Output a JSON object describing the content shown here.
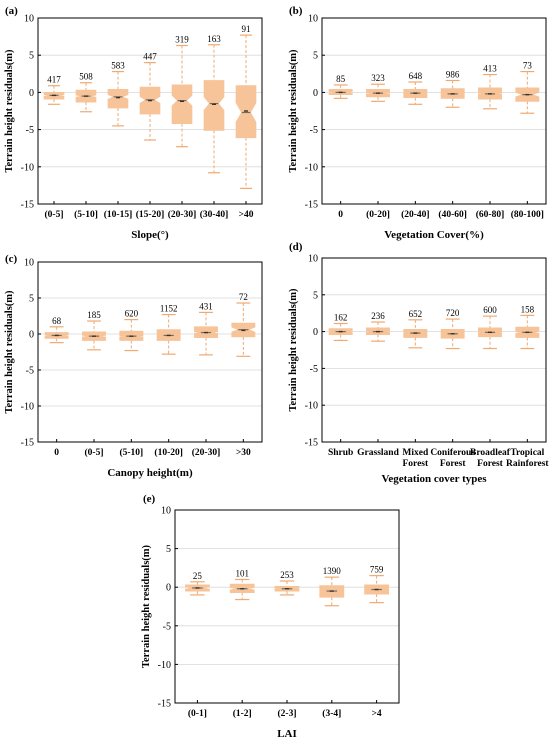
{
  "chart_data": [
    {
      "id": "a",
      "type": "box",
      "panel_label": "(a)",
      "title": "",
      "xlabel": "Slope(°)",
      "ylabel": "Terrain height residuals(m)",
      "ylim": [
        -15,
        10
      ],
      "yticks": [
        -15,
        -10,
        -5,
        0,
        5,
        10
      ],
      "grid": true,
      "categories": [
        "(0-5]",
        "(5-10]",
        "(10-15]",
        "(15-20]",
        "(20-30]",
        "(30-40]",
        ">40"
      ],
      "counts": [
        "417",
        "508",
        "583",
        "447",
        "319",
        "163",
        "91"
      ],
      "boxes": [
        {
          "q1": -0.9,
          "median": -0.4,
          "q3": 0.0,
          "whisker_low": -1.6,
          "whisker_high": 0.9,
          "notch": 0.12,
          "mean": -0.4
        },
        {
          "q1": -1.3,
          "median": -0.5,
          "q3": 0.3,
          "whisker_low": -2.6,
          "whisker_high": 1.3,
          "notch": 0.15,
          "mean": -0.5
        },
        {
          "q1": -2.1,
          "median": -0.6,
          "q3": 0.4,
          "whisker_low": -4.5,
          "whisker_high": 2.8,
          "notch": 0.3,
          "mean": -0.7
        },
        {
          "q1": -2.9,
          "median": -1.0,
          "q3": 0.7,
          "whisker_low": -6.4,
          "whisker_high": 4.0,
          "notch": 0.45,
          "mean": -1.1
        },
        {
          "q1": -4.2,
          "median": -1.1,
          "q3": 1.0,
          "whisker_low": -7.3,
          "whisker_high": 6.3,
          "notch": 0.7,
          "mean": -1.2
        },
        {
          "q1": -5.1,
          "median": -1.5,
          "q3": 1.6,
          "whisker_low": -10.8,
          "whisker_high": 6.4,
          "notch": 0.9,
          "mean": -1.6
        },
        {
          "q1": -6.1,
          "median": -2.7,
          "q3": 0.9,
          "whisker_low": -12.9,
          "whisker_high": 7.7,
          "notch": 1.3,
          "mean": -2.5
        }
      ]
    },
    {
      "id": "b",
      "type": "box",
      "panel_label": "(b)",
      "title": "",
      "xlabel": "Vegetation Cover(%)",
      "ylabel": "Terrain height residuals(m)",
      "ylim": [
        -15,
        10
      ],
      "yticks": [
        -15,
        -10,
        -5,
        0,
        5,
        10
      ],
      "grid": true,
      "categories": [
        "0",
        "(0-20]",
        "(20-40]",
        "(40-60]",
        "(60-80]",
        "(80-100]"
      ],
      "counts": [
        "85",
        "323",
        "648",
        "986",
        "413",
        "73"
      ],
      "boxes": [
        {
          "q1": -0.3,
          "median": 0.0,
          "q3": 0.4,
          "whisker_low": -0.8,
          "whisker_high": 1.0,
          "notch": 0.12,
          "mean": 0.0
        },
        {
          "q1": -0.6,
          "median": -0.1,
          "q3": 0.4,
          "whisker_low": -1.2,
          "whisker_high": 1.1,
          "notch": 0.08,
          "mean": -0.1
        },
        {
          "q1": -0.7,
          "median": -0.1,
          "q3": 0.4,
          "whisker_low": -1.6,
          "whisker_high": 1.4,
          "notch": 0.06,
          "mean": -0.1
        },
        {
          "q1": -0.8,
          "median": -0.2,
          "q3": 0.5,
          "whisker_low": -2.0,
          "whisker_high": 1.6,
          "notch": 0.05,
          "mean": -0.2
        },
        {
          "q1": -0.9,
          "median": -0.2,
          "q3": 0.6,
          "whisker_low": -2.2,
          "whisker_high": 2.4,
          "notch": 0.08,
          "mean": -0.2
        },
        {
          "q1": -1.2,
          "median": -0.3,
          "q3": 0.6,
          "whisker_low": -2.8,
          "whisker_high": 2.8,
          "notch": 0.3,
          "mean": -0.3
        }
      ]
    },
    {
      "id": "c",
      "type": "box",
      "panel_label": "(c)",
      "title": "",
      "xlabel": "Canopy height(m)",
      "ylabel": "Terrain height residuals(m)",
      "ylim": [
        -15,
        10
      ],
      "yticks": [
        -15,
        -10,
        -5,
        0,
        5,
        10
      ],
      "grid": true,
      "categories": [
        "0",
        "(0-5]",
        "(5-10]",
        "(10-20]",
        "(20-30]",
        ">30"
      ],
      "counts": [
        "68",
        "185",
        "620",
        "1152",
        "431",
        "72"
      ],
      "boxes": [
        {
          "q1": -0.6,
          "median": -0.2,
          "q3": 0.2,
          "whisker_low": -1.2,
          "whisker_high": 1.0,
          "notch": 0.1,
          "mean": -0.2
        },
        {
          "q1": -0.9,
          "median": -0.3,
          "q3": 0.3,
          "whisker_low": -2.2,
          "whisker_high": 1.8,
          "notch": 0.12,
          "mean": -0.3
        },
        {
          "q1": -0.9,
          "median": -0.3,
          "q3": 0.4,
          "whisker_low": -2.3,
          "whisker_high": 2.0,
          "notch": 0.08,
          "mean": -0.3
        },
        {
          "q1": -0.9,
          "median": -0.2,
          "q3": 0.6,
          "whisker_low": -2.8,
          "whisker_high": 2.7,
          "notch": 0.06,
          "mean": -0.2
        },
        {
          "q1": -0.5,
          "median": 0.2,
          "q3": 1.0,
          "whisker_low": -2.9,
          "whisker_high": 3.0,
          "notch": 0.12,
          "mean": 0.2
        },
        {
          "q1": -0.4,
          "median": 0.6,
          "q3": 1.5,
          "whisker_low": -3.1,
          "whisker_high": 4.3,
          "notch": 0.35,
          "mean": 0.5
        }
      ]
    },
    {
      "id": "d",
      "type": "box",
      "panel_label": "(d)",
      "title": "",
      "xlabel": "Vegetation cover types",
      "ylabel": "Terrain height residuals(m)",
      "ylim": [
        -15,
        10
      ],
      "yticks": [
        -15,
        -10,
        -5,
        0,
        5,
        10
      ],
      "grid": true,
      "categories": [
        [
          "Shrub"
        ],
        [
          "Grassland"
        ],
        [
          "Mixed",
          "Forest"
        ],
        [
          "Coniferous",
          "Forest"
        ],
        [
          "Broadleaf",
          "Forest"
        ],
        [
          "Tropical",
          "Rainforest"
        ]
      ],
      "counts": [
        "162",
        "236",
        "652",
        "720",
        "600",
        "158"
      ],
      "boxes": [
        {
          "q1": -0.4,
          "median": 0.0,
          "q3": 0.4,
          "whisker_low": -1.2,
          "whisker_high": 1.1,
          "notch": 0.1,
          "mean": 0.0
        },
        {
          "q1": -0.4,
          "median": 0.0,
          "q3": 0.5,
          "whisker_low": -1.3,
          "whisker_high": 1.3,
          "notch": 0.1,
          "mean": 0.0
        },
        {
          "q1": -0.8,
          "median": -0.2,
          "q3": 0.3,
          "whisker_low": -2.2,
          "whisker_high": 1.6,
          "notch": 0.06,
          "mean": -0.2
        },
        {
          "q1": -0.9,
          "median": -0.3,
          "q3": 0.3,
          "whisker_low": -2.3,
          "whisker_high": 1.7,
          "notch": 0.06,
          "mean": -0.3
        },
        {
          "q1": -0.7,
          "median": -0.1,
          "q3": 0.5,
          "whisker_low": -2.3,
          "whisker_high": 2.1,
          "notch": 0.07,
          "mean": -0.1
        },
        {
          "q1": -0.8,
          "median": -0.1,
          "q3": 0.6,
          "whisker_low": -2.3,
          "whisker_high": 2.2,
          "notch": 0.12,
          "mean": -0.1
        }
      ]
    },
    {
      "id": "e",
      "type": "box",
      "panel_label": "(e)",
      "title": "",
      "xlabel": "LAI",
      "ylabel": "Terrain height residuals(m)",
      "ylim": [
        -15,
        10
      ],
      "yticks": [
        -15,
        -10,
        -5,
        0,
        5,
        10
      ],
      "grid": true,
      "categories": [
        "(0-1]",
        "(1-2]",
        "(2-3]",
        "(3-4]",
        ">4"
      ],
      "counts": [
        "25",
        "101",
        "253",
        "1390",
        "759"
      ],
      "boxes": [
        {
          "q1": -0.5,
          "median": -0.1,
          "q3": 0.3,
          "whisker_low": -1.0,
          "whisker_high": 0.7,
          "notch": 0.15,
          "mean": -0.1
        },
        {
          "q1": -0.7,
          "median": -0.2,
          "q3": 0.4,
          "whisker_low": -1.6,
          "whisker_high": 1.0,
          "notch": 0.15,
          "mean": -0.2
        },
        {
          "q1": -0.5,
          "median": -0.2,
          "q3": 0.1,
          "whisker_low": -1.0,
          "whisker_high": 0.8,
          "notch": 0.06,
          "mean": -0.2
        },
        {
          "q1": -1.3,
          "median": -0.5,
          "q3": 0.2,
          "whisker_low": -2.4,
          "whisker_high": 1.3,
          "notch": 0.04,
          "mean": -0.5
        },
        {
          "q1": -0.9,
          "median": -0.3,
          "q3": 0.3,
          "whisker_low": -2.0,
          "whisker_high": 1.5,
          "notch": 0.05,
          "mean": -0.3
        }
      ]
    }
  ],
  "colors": {
    "box_fill": "#f7c49a",
    "whisker": "#f0a970",
    "median": "#7a6a5a",
    "grid": "#d9d9d9",
    "axis": "#000000"
  }
}
